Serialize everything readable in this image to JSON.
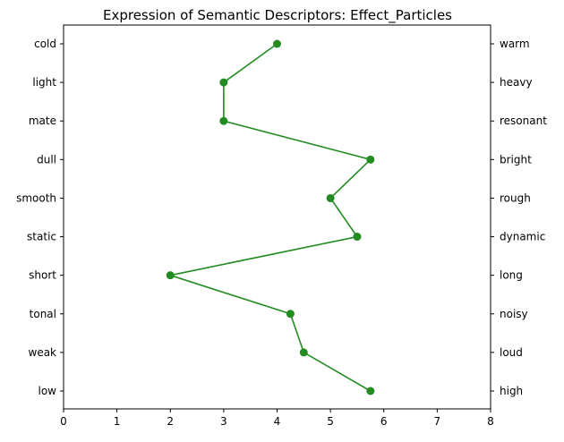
{
  "chart_data": {
    "type": "line",
    "title": "Expression of Semantic Descriptors: Effect_Particles",
    "xlabel": "",
    "ylabel": "",
    "xlim": [
      0,
      8
    ],
    "x_ticks": [
      "0",
      "1",
      "2",
      "3",
      "4",
      "5",
      "6",
      "7",
      "8"
    ],
    "grid": false,
    "legend": "none",
    "categories_left": [
      "cold",
      "light",
      "mate",
      "dull",
      "smooth",
      "static",
      "short",
      "tonal",
      "weak",
      "low"
    ],
    "categories_right": [
      "warm",
      "heavy",
      "resonant",
      "bright",
      "rough",
      "dynamic",
      "long",
      "noisy",
      "loud",
      "high"
    ],
    "values": [
      4.0,
      3.0,
      3.0,
      5.75,
      5.0,
      5.5,
      2.0,
      4.25,
      4.5,
      5.75
    ],
    "color": "#228b22"
  }
}
